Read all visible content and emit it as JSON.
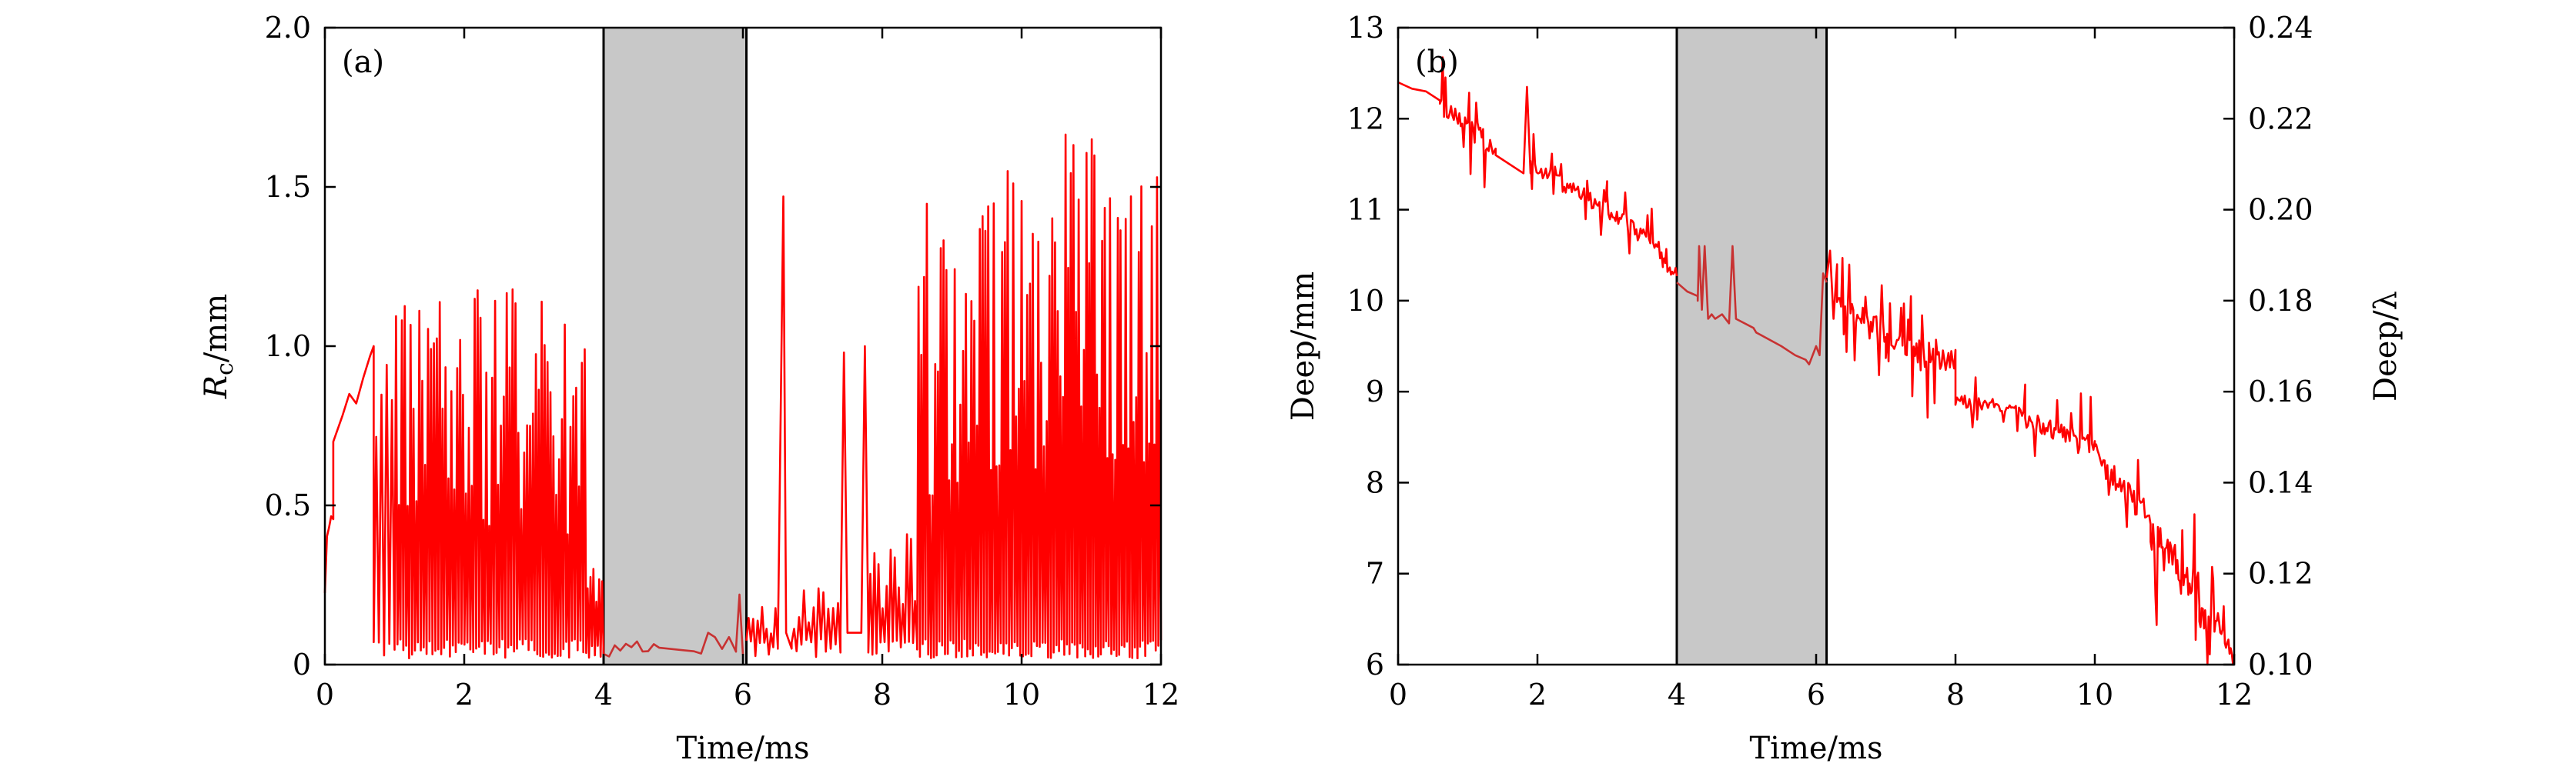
{
  "chart_data": [
    {
      "type": "line",
      "panel_label": "(a)",
      "xlabel": "Time/ms",
      "ylabel_symbol": "R",
      "ylabel_sub": "c",
      "ylabel_unit": "/mm",
      "xlim": [
        0,
        12
      ],
      "ylim": [
        0,
        2.0
      ],
      "xticks": [
        "0",
        "2",
        "4",
        "6",
        "8",
        "10",
        "12"
      ],
      "yticks": [
        "0",
        "0.5",
        "1.0",
        "1.5",
        "2.0"
      ],
      "shaded_region": [
        4.0,
        6.05
      ],
      "colors": {
        "series": "#ff0000",
        "series_dim": "#c83232",
        "shade": "#c8c8c8"
      },
      "series": [
        {
          "style": "solid",
          "segments": [
            {
              "type": "rand",
              "x": [
                0.0,
                0.12
              ],
              "base": 0.3,
              "amp": 0.25,
              "n": 4
            },
            {
              "type": "points",
              "x": [
                0.12,
                0.25,
                0.35,
                0.45,
                0.55,
                0.65,
                0.7
              ],
              "y": [
                0.7,
                0.78,
                0.85,
                0.82,
                0.9,
                0.97,
                1.0
              ]
            },
            {
              "type": "osc",
              "x": [
                0.7,
                1.0
              ],
              "low": 0.02,
              "high": 0.95,
              "n": 8
            },
            {
              "type": "osc",
              "x": [
                1.0,
                3.3
              ],
              "low": 0.02,
              "high": 1.18,
              "n": 110
            },
            {
              "type": "osc",
              "x": [
                3.3,
                3.75
              ],
              "low": 0.02,
              "high": 1.1,
              "n": 22
            },
            {
              "type": "osc",
              "x": [
                3.75,
                4.0
              ],
              "low": 0.02,
              "high": 0.4,
              "n": 12
            }
          ]
        },
        {
          "style": "dim",
          "segments": [
            {
              "type": "rand",
              "x": [
                4.0,
                4.8
              ],
              "base": 0.04,
              "amp": 0.06,
              "n": 10
            },
            {
              "type": "rand",
              "x": [
                5.3,
                5.9
              ],
              "base": 0.05,
              "amp": 0.08,
              "n": 6
            },
            {
              "type": "points",
              "x": [
                5.9,
                5.95,
                6.0
              ],
              "y": [
                0.05,
                0.22,
                0.03
              ]
            }
          ]
        },
        {
          "style": "solid",
          "segments": [
            {
              "type": "osc",
              "x": [
                6.05,
                6.5
              ],
              "low": 0.02,
              "high": 0.2,
              "n": 14
            },
            {
              "type": "points",
              "x": [
                6.5,
                6.58,
                6.62,
                6.7
              ],
              "y": [
                0.05,
                1.47,
                0.1,
                0.05
              ]
            },
            {
              "type": "osc",
              "x": [
                6.7,
                7.4
              ],
              "low": 0.02,
              "high": 0.28,
              "n": 20
            },
            {
              "type": "points",
              "x": [
                7.4,
                7.45,
                7.5,
                7.7,
                7.75,
                7.8
              ],
              "y": [
                0.1,
                0.98,
                0.1,
                0.1,
                1.0,
                0.1
              ]
            },
            {
              "type": "osc",
              "x": [
                7.8,
                8.5
              ],
              "low": 0.02,
              "high": 0.45,
              "n": 24
            },
            {
              "type": "osc",
              "x": [
                8.5,
                9.3
              ],
              "low": 0.02,
              "high": 1.45,
              "n": 40
            },
            {
              "type": "osc",
              "x": [
                9.3,
                10.5
              ],
              "low": 0.02,
              "high": 1.6,
              "n": 60
            },
            {
              "type": "osc",
              "x": [
                10.5,
                12.0
              ],
              "low": 0.02,
              "high": 1.68,
              "n": 80
            }
          ]
        }
      ]
    },
    {
      "type": "line",
      "panel_label": "(b)",
      "xlabel": "Time/ms",
      "ylabel": "Deep/mm",
      "ylabel_right": "Deep/λ",
      "xlim": [
        0,
        12
      ],
      "ylim": [
        6,
        13
      ],
      "ylim_right": [
        0.1,
        0.24
      ],
      "xticks": [
        "0",
        "2",
        "4",
        "6",
        "8",
        "10",
        "12"
      ],
      "yticks": [
        "6",
        "7",
        "8",
        "9",
        "10",
        "11",
        "12",
        "13"
      ],
      "yticks_right": [
        "0.10",
        "0.12",
        "0.14",
        "0.16",
        "0.18",
        "0.20",
        "0.22",
        "0.24"
      ],
      "shaded_region": [
        4.0,
        6.15
      ],
      "colors": {
        "series": "#ff0000",
        "series_dim": "#c83232",
        "shade": "#c8c8c8"
      },
      "series": [
        {
          "style": "solid",
          "segments": [
            {
              "type": "points",
              "x": [
                0.0,
                0.2,
                0.4,
                0.6
              ],
              "y": [
                12.4,
                12.33,
                12.3,
                12.2
              ]
            },
            {
              "type": "spiky",
              "x": [
                0.6,
                1.4
              ],
              "y0": 12.1,
              "y1": 11.7,
              "noise": 0.25,
              "spike": 0.55,
              "n": 40
            },
            {
              "type": "points",
              "x": [
                1.4,
                1.8,
                1.85,
                1.9
              ],
              "y": [
                11.6,
                11.4,
                12.35,
                11.4
              ]
            },
            {
              "type": "spiky",
              "x": [
                1.9,
                3.0
              ],
              "y0": 11.5,
              "y1": 11.0,
              "noise": 0.18,
              "spike": 0.35,
              "n": 50
            },
            {
              "type": "spiky",
              "x": [
                3.0,
                3.8
              ],
              "y0": 11.0,
              "y1": 10.6,
              "noise": 0.18,
              "spike": 0.3,
              "n": 40
            },
            {
              "type": "spiky",
              "x": [
                3.8,
                4.0
              ],
              "y0": 10.4,
              "y1": 10.3,
              "noise": 0.15,
              "spike": 0.25,
              "n": 12
            }
          ]
        },
        {
          "style": "dim",
          "segments": [
            {
              "type": "points",
              "x": [
                4.0,
                4.15,
                4.3
              ],
              "y": [
                10.2,
                10.1,
                10.05
              ]
            },
            {
              "type": "points",
              "x": [
                4.3,
                4.32,
                4.36,
                4.4,
                4.45,
                4.5
              ],
              "y": [
                10.0,
                10.6,
                9.9,
                10.6,
                9.8,
                9.85
              ]
            },
            {
              "type": "points",
              "x": [
                4.55,
                4.65,
                4.75,
                4.8,
                4.85
              ],
              "y": [
                9.8,
                9.85,
                9.75,
                10.6,
                9.8
              ]
            },
            {
              "type": "points",
              "x": [
                5.1,
                5.14
              ],
              "y": [
                9.7,
                9.65
              ]
            },
            {
              "type": "points",
              "x": [
                5.5,
                5.6,
                5.7
              ],
              "y": [
                9.5,
                9.45,
                9.4
              ]
            },
            {
              "type": "points",
              "x": [
                5.85,
                5.9
              ],
              "y": [
                9.35,
                9.3
              ]
            },
            {
              "type": "points",
              "x": [
                6.0,
                6.05,
                6.1,
                6.15
              ],
              "y": [
                9.5,
                9.4,
                10.3,
                10.2
              ]
            }
          ]
        },
        {
          "style": "solid",
          "segments": [
            {
              "type": "points",
              "x": [
                6.15,
                6.2,
                6.25,
                6.3
              ],
              "y": [
                10.25,
                10.55,
                9.8,
                10.4
              ]
            },
            {
              "type": "spiky",
              "x": [
                6.3,
                7.0
              ],
              "y0": 10.0,
              "y1": 9.6,
              "noise": 0.3,
              "spike": 0.6,
              "n": 36
            },
            {
              "type": "spiky",
              "x": [
                7.0,
                8.0
              ],
              "y0": 9.5,
              "y1": 9.3,
              "noise": 0.35,
              "spike": 0.6,
              "n": 50
            },
            {
              "type": "spiky",
              "x": [
                8.0,
                9.0
              ],
              "y0": 8.9,
              "y1": 8.8,
              "noise": 0.15,
              "spike": 0.3,
              "n": 45
            },
            {
              "type": "spiky",
              "x": [
                9.0,
                10.0
              ],
              "y0": 8.7,
              "y1": 8.4,
              "noise": 0.2,
              "spike": 0.45,
              "n": 50
            },
            {
              "type": "spiky",
              "x": [
                10.0,
                10.8
              ],
              "y0": 8.3,
              "y1": 7.6,
              "noise": 0.3,
              "spike": 0.6,
              "n": 40
            },
            {
              "type": "spiky",
              "x": [
                10.8,
                11.5
              ],
              "y0": 7.4,
              "y1": 6.8,
              "noise": 0.45,
              "spike": 0.7,
              "n": 40
            },
            {
              "type": "spiky",
              "x": [
                11.5,
                12.0
              ],
              "y0": 6.6,
              "y1": 6.2,
              "noise": 0.35,
              "spike": 0.5,
              "n": 30
            }
          ]
        }
      ]
    }
  ]
}
